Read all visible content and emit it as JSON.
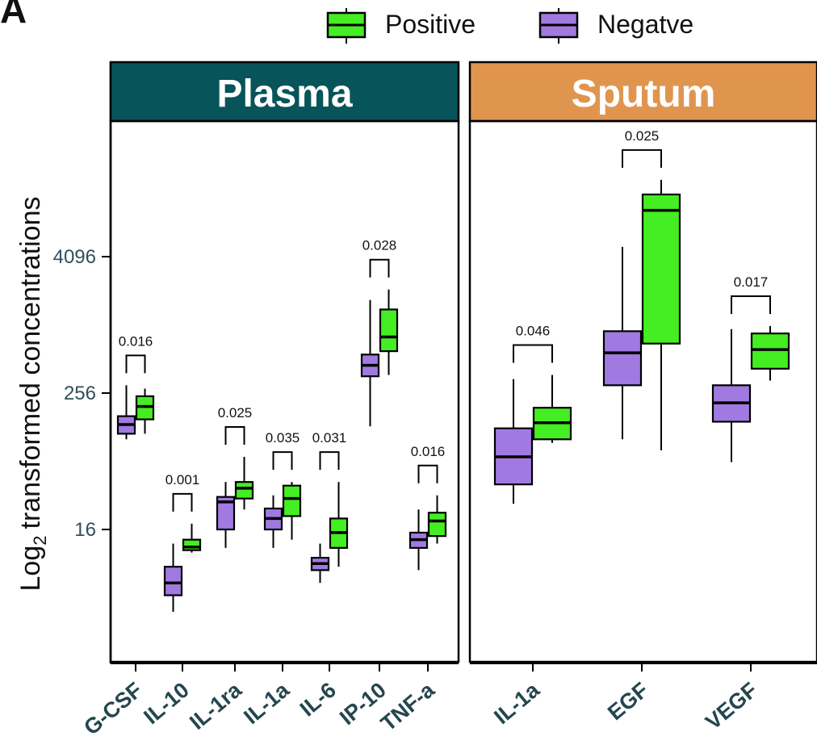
{
  "panel_label": "A",
  "chart_data": {
    "type": "box",
    "ylabel_main": "Log",
    "ylabel_sub": "2",
    "ylabel_rest": "transformed concentrations",
    "y_scale": "log2",
    "y_ticks": [
      {
        "value": 16,
        "label": "16"
      },
      {
        "value": 256,
        "label": "256"
      },
      {
        "value": 4096,
        "label": "4096"
      }
    ],
    "legend": {
      "position": "top",
      "entries": [
        {
          "name": "Positive",
          "color": "#44ee22"
        },
        {
          "name": "Negatve",
          "color": "#a07ae0"
        }
      ]
    },
    "colors": {
      "positive": "#44ee22",
      "negative": "#a07ae0",
      "plasma_strip": "#07545a",
      "sputum_strip": "#e0954f"
    },
    "facets": [
      {
        "name": "Plasma",
        "categories": [
          {
            "label": "G-CSF",
            "p_value": "0.016",
            "negative": {
              "min": 100,
              "q1": 112,
              "median": 135,
              "q3": 160,
              "max": 300
            },
            "positive": {
              "min": 112,
              "q1": 150,
              "median": 195,
              "q3": 240,
              "max": 280
            }
          },
          {
            "label": "IL-10",
            "p_value": "0.001",
            "negative": {
              "min": 3,
              "q1": 4.2,
              "median": 5.4,
              "q3": 7.5,
              "max": 12
            },
            "positive": {
              "min": 10,
              "q1": 10.5,
              "median": 11.2,
              "q3": 13,
              "max": 18
            }
          },
          {
            "label": "IL-1ra",
            "p_value": "0.025",
            "negative": {
              "min": 11,
              "q1": 16,
              "median": 28,
              "q3": 31,
              "max": 42
            },
            "positive": {
              "min": 24,
              "q1": 30,
              "median": 37,
              "q3": 42,
              "max": 70
            }
          },
          {
            "label": "IL-1a",
            "p_value": "0.035",
            "negative": {
              "min": 11,
              "q1": 16,
              "median": 20,
              "q3": 24.5,
              "max": 32
            },
            "positive": {
              "min": 13,
              "q1": 21,
              "median": 30,
              "q3": 39,
              "max": 42
            }
          },
          {
            "label": "IL-6",
            "p_value": "0.031",
            "negative": {
              "min": 5.4,
              "q1": 7,
              "median": 8,
              "q3": 9,
              "max": 12
            },
            "positive": {
              "min": 7.5,
              "q1": 11,
              "median": 15,
              "q3": 20,
              "max": 42
            }
          },
          {
            "label": "IP-10",
            "p_value": "0.028",
            "negative": {
              "min": 130,
              "q1": 360,
              "median": 450,
              "q3": 560,
              "max": 1700
            },
            "positive": {
              "min": 370,
              "q1": 600,
              "median": 800,
              "q3": 1400,
              "max": 2100
            }
          },
          {
            "label": "TNF-a",
            "p_value": "0.016",
            "negative": {
              "min": 7,
              "q1": 11,
              "median": 13,
              "q3": 15,
              "max": 24
            },
            "positive": {
              "min": 12,
              "q1": 14,
              "median": 19,
              "q3": 22.5,
              "max": 32
            }
          }
        ]
      },
      {
        "name": "Sputum",
        "categories": [
          {
            "label": "IL-1a",
            "p_value": "0.046",
            "negative": {
              "min": 27,
              "q1": 40,
              "median": 70,
              "q3": 125,
              "max": 340
            },
            "positive": {
              "min": 93,
              "q1": 100,
              "median": 140,
              "q3": 190,
              "max": 370
            }
          },
          {
            "label": "EGF",
            "p_value": "0.025",
            "negative": {
              "min": 100,
              "q1": 300,
              "median": 580,
              "q3": 900,
              "max": 5000
            },
            "positive": {
              "min": 80,
              "q1": 700,
              "median": 10500,
              "q3": 14500,
              "max": 19500
            }
          },
          {
            "label": "VEGF",
            "p_value": "0.017",
            "negative": {
              "min": 63,
              "q1": 143,
              "median": 210,
              "q3": 300,
              "max": 940
            },
            "positive": {
              "min": 330,
              "q1": 420,
              "median": 620,
              "q3": 860,
              "max": 1000
            }
          }
        ]
      }
    ]
  }
}
